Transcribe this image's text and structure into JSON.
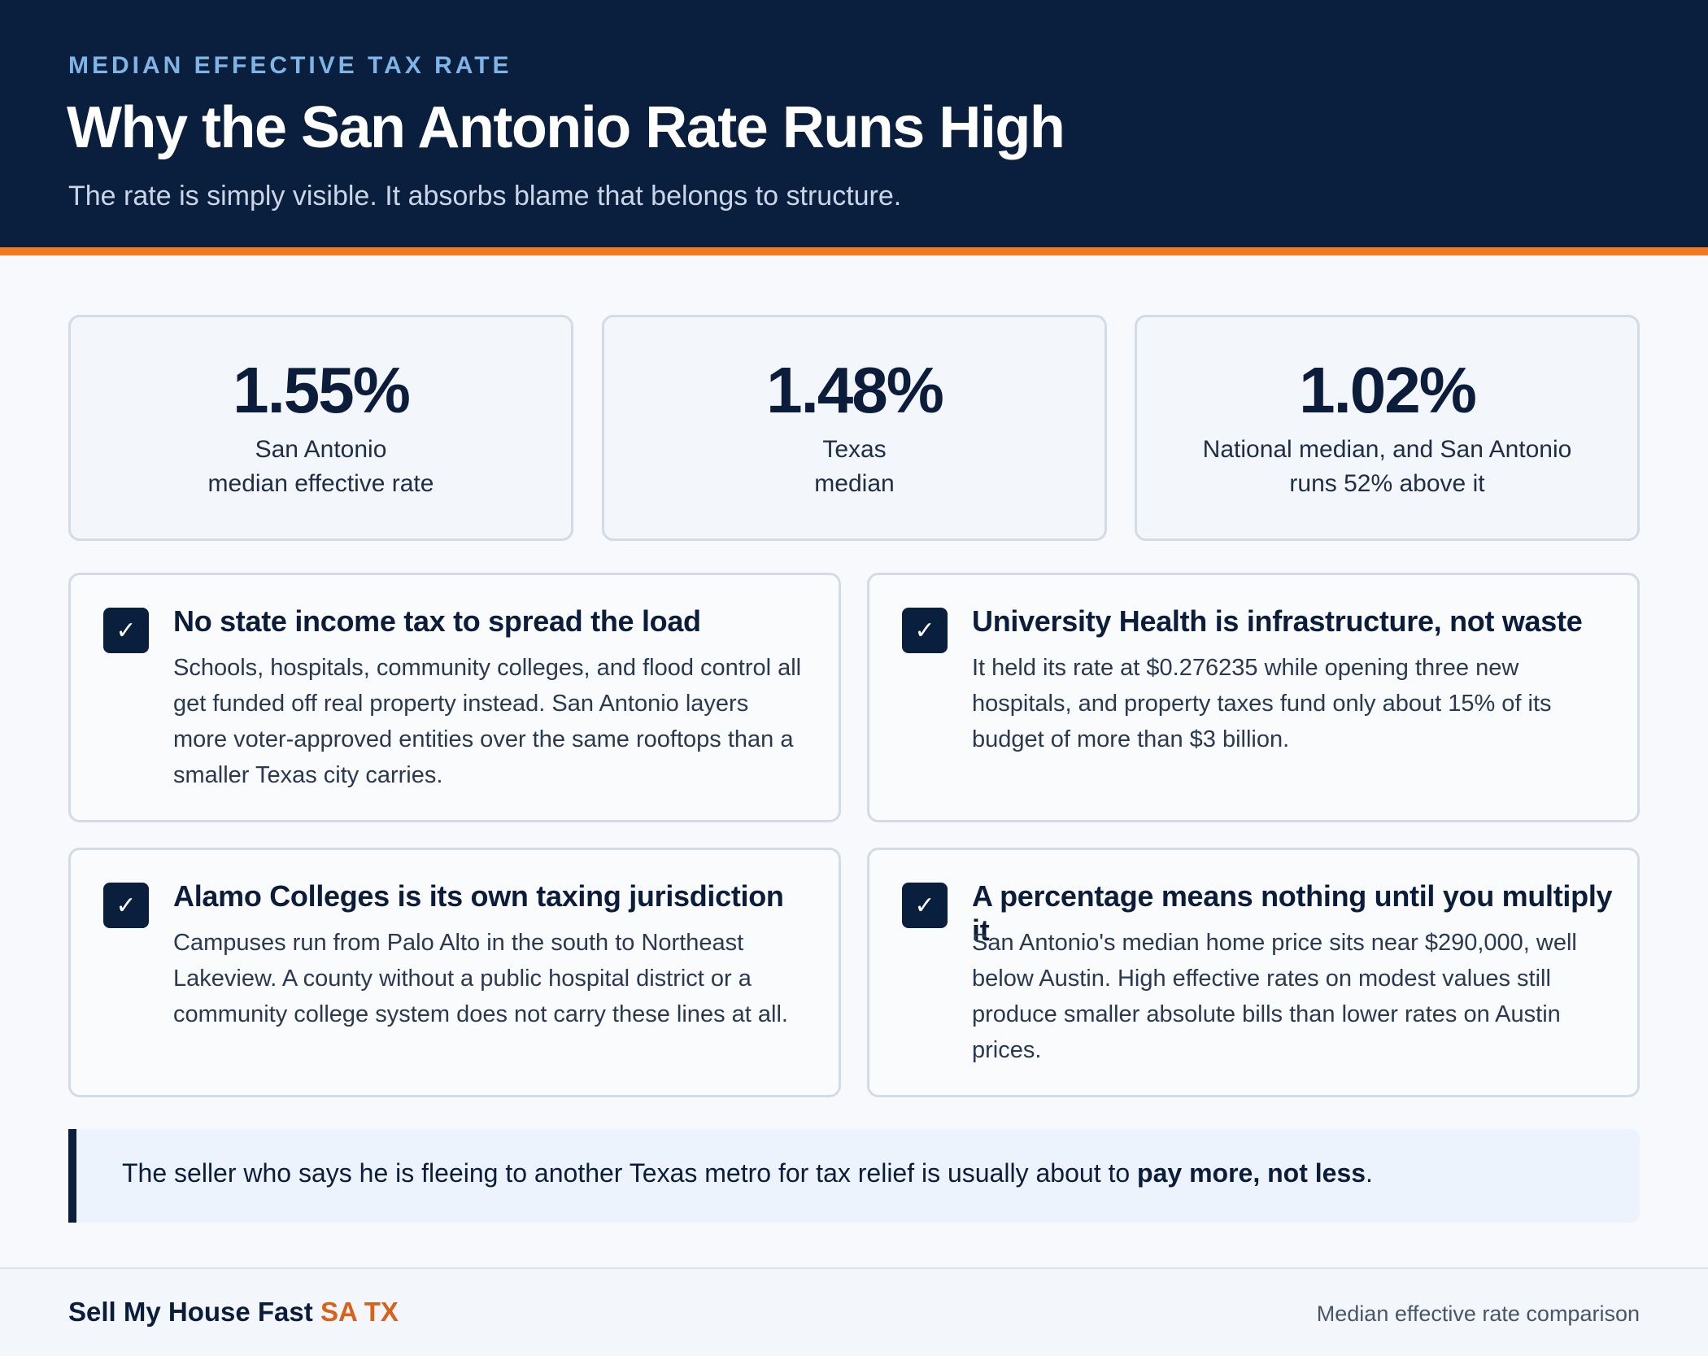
{
  "header": {
    "eyebrow": "MEDIAN EFFECTIVE TAX RATE",
    "title": "Why the San Antonio Rate Runs High",
    "subtitle": "The rate is simply visible. It absorbs blame that belongs to structure."
  },
  "stats": [
    {
      "value": "1.55%",
      "label_line1": "San Antonio",
      "label_line2": "median effective rate"
    },
    {
      "value": "1.48%",
      "label_line1": "Texas",
      "label_line2": "median"
    },
    {
      "value": "1.02%",
      "label_line1": "National median, and San Antonio",
      "label_line2": "runs 52% above it"
    }
  ],
  "cards": [
    {
      "check": "✓",
      "title": "No state income tax to spread the load",
      "body": "Schools, hospitals, community colleges, and flood control all get funded off real property instead. San Antonio layers more voter-approved entities over the same rooftops than a smaller Texas city carries."
    },
    {
      "check": "✓",
      "title": "University Health is infrastructure, not waste",
      "body": "It held its rate at $0.276235 while opening three new hospitals, and property taxes fund only about 15% of its budget of more than $3 billion."
    },
    {
      "check": "✓",
      "title": "Alamo Colleges is its own taxing jurisdiction",
      "body": "Campuses run from Palo Alto in the south to Northeast Lakeview. A county without a public hospital district or a community college system does not carry these lines at all."
    },
    {
      "check": "✓",
      "title": "A percentage means nothing until you multiply it",
      "body": "San Antonio's median home price sits near $290,000, well below Austin. High effective rates on modest values still produce smaller absolute bills than lower rates on Austin prices."
    }
  ],
  "callout": {
    "text": "The seller who says he is fleeing to another Texas metro for tax relief is usually about to ",
    "emphasis": "pay more, not less",
    "end": "."
  },
  "footer": {
    "brand_main": "Sell My House Fast ",
    "brand_accent": "SA TX",
    "note": "Median effective rate comparison"
  },
  "colors": {
    "navy": "#0a1e3d",
    "accent_orange": "#f47a20",
    "eyebrow_blue": "#7fb4e6",
    "brand_orange": "#d9621a"
  }
}
